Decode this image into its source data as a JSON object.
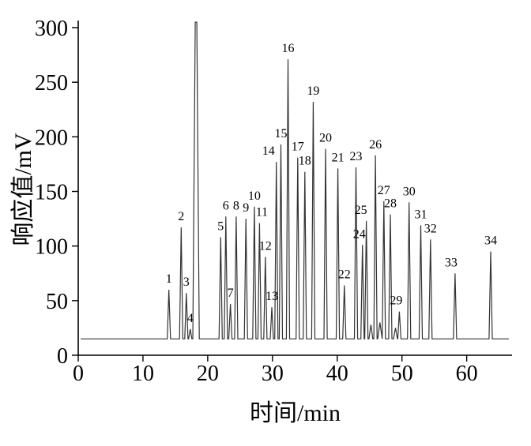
{
  "page": {
    "background": "#ffffff",
    "axis_color": "#000000",
    "trace_color": "#333333"
  },
  "chart_data": {
    "type": "line",
    "chart_kind": "gas-chromatogram",
    "title": "",
    "xlabel": "时间/min",
    "ylabel": "响应值/mV",
    "xlim": [
      0,
      67
    ],
    "ylim": [
      0,
      300
    ],
    "x_ticks": [
      0,
      10,
      20,
      30,
      40,
      50,
      60
    ],
    "y_ticks": [
      0,
      50,
      100,
      150,
      200,
      250,
      300
    ],
    "grid": false,
    "legend": "none",
    "baseline_mV": 15,
    "trace_start_min": 0.4,
    "trace_end_min": 66.5,
    "default_peak_halfwidth_min": 0.25,
    "peaks": [
      {
        "label": "1",
        "t_min": 14.0,
        "apex_mV": 60
      },
      {
        "label": "2",
        "t_min": 15.9,
        "apex_mV": 117
      },
      {
        "label": "3",
        "t_min": 16.7,
        "apex_mV": 57
      },
      {
        "label": "4",
        "t_min": 17.3,
        "apex_mV": 24
      },
      {
        "label": "",
        "t_min": 18.2,
        "apex_mV": 305,
        "w_min": 0.5,
        "flat_top": true,
        "note": "off-scale solvent peak"
      },
      {
        "label": "5",
        "t_min": 22.0,
        "apex_mV": 108
      },
      {
        "label": "6",
        "t_min": 22.8,
        "apex_mV": 127
      },
      {
        "label": "7",
        "t_min": 23.5,
        "apex_mV": 47
      },
      {
        "label": "8",
        "t_min": 24.4,
        "apex_mV": 127
      },
      {
        "label": "9",
        "t_min": 25.9,
        "apex_mV": 125
      },
      {
        "label": "10",
        "t_min": 27.2,
        "apex_mV": 136
      },
      {
        "label": "11",
        "t_min": 28.0,
        "apex_mV": 121,
        "label_dx": 3
      },
      {
        "label": "12",
        "t_min": 28.9,
        "apex_mV": 90
      },
      {
        "label": "13",
        "t_min": 29.9,
        "apex_mV": 44
      },
      {
        "label": "14",
        "t_min": 30.6,
        "apex_mV": 177,
        "label_dx": -10
      },
      {
        "label": "15",
        "t_min": 31.3,
        "apex_mV": 193
      },
      {
        "label": "16",
        "t_min": 32.4,
        "apex_mV": 271
      },
      {
        "label": "17",
        "t_min": 33.9,
        "apex_mV": 181
      },
      {
        "label": "18",
        "t_min": 35.0,
        "apex_mV": 168
      },
      {
        "label": "19",
        "t_min": 36.3,
        "apex_mV": 232
      },
      {
        "label": "20",
        "t_min": 38.2,
        "apex_mV": 189
      },
      {
        "label": "21",
        "t_min": 40.1,
        "apex_mV": 171
      },
      {
        "label": "22",
        "t_min": 41.1,
        "apex_mV": 64
      },
      {
        "label": "23",
        "t_min": 42.9,
        "apex_mV": 172
      },
      {
        "label": "24",
        "t_min": 43.9,
        "apex_mV": 101,
        "label_dx": -4
      },
      {
        "label": "25",
        "t_min": 44.5,
        "apex_mV": 123,
        "label_dx": -7
      },
      {
        "label": "",
        "t_min": 45.2,
        "apex_mV": 28,
        "w_min": 0.3
      },
      {
        "label": "26",
        "t_min": 45.9,
        "apex_mV": 183
      },
      {
        "label": "",
        "t_min": 46.6,
        "apex_mV": 30,
        "w_min": 0.35
      },
      {
        "label": "27",
        "t_min": 47.2,
        "apex_mV": 141
      },
      {
        "label": "28",
        "t_min": 48.2,
        "apex_mV": 129
      },
      {
        "label": "",
        "t_min": 49.0,
        "apex_mV": 25,
        "w_min": 0.3
      },
      {
        "label": "29",
        "t_min": 49.6,
        "apex_mV": 40,
        "label_dx": -4
      },
      {
        "label": "30",
        "t_min": 51.1,
        "apex_mV": 140
      },
      {
        "label": "31",
        "t_min": 52.9,
        "apex_mV": 119
      },
      {
        "label": "32",
        "t_min": 54.4,
        "apex_mV": 106
      },
      {
        "label": "33",
        "t_min": 58.2,
        "apex_mV": 75,
        "label_dx": -5
      },
      {
        "label": "34",
        "t_min": 63.7,
        "apex_mV": 95
      }
    ]
  }
}
